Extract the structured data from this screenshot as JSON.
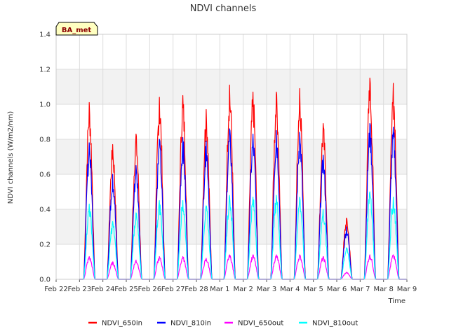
{
  "chart_data": {
    "type": "line",
    "title": "NDVI channels",
    "xlabel": "Time",
    "ylabel": "NDVI channels (W/m2/nm)",
    "badge": "BA_met",
    "x_ticks": [
      "Feb 22",
      "Feb 23",
      "Feb 24",
      "Feb 25",
      "Feb 26",
      "Feb 27",
      "Feb 28",
      "Mar 1",
      "Mar 2",
      "Mar 3",
      "Mar 4",
      "Mar 5",
      "Mar 6",
      "Mar 7",
      "Mar 8",
      "Mar 9"
    ],
    "x_range_days": [
      0,
      15
    ],
    "y_ticks": [
      "0.0",
      "0.2",
      "0.4",
      "0.6",
      "0.8",
      "1.0",
      "1.2",
      "1.4"
    ],
    "ylim": [
      0,
      1.4
    ],
    "grid": true,
    "legend_position": "bottom",
    "day_peak_time": 0.42,
    "series": [
      {
        "name": "NDVI_650in",
        "color": "#ff0000",
        "daily_peaks": [
          1.01,
          0.77,
          0.83,
          1.04,
          1.05,
          0.97,
          1.11,
          1.07,
          1.07,
          1.09,
          0.89,
          0.35,
          1.15,
          1.12
        ]
      },
      {
        "name": "NDVI_810in",
        "color": "#0000ff",
        "daily_peaks": [
          0.78,
          0.6,
          0.65,
          0.8,
          0.81,
          0.79,
          0.86,
          0.83,
          0.85,
          0.84,
          0.71,
          0.3,
          0.89,
          0.87
        ]
      },
      {
        "name": "NDVI_650out",
        "color": "#ff00ff",
        "daily_peaks": [
          0.13,
          0.1,
          0.11,
          0.13,
          0.13,
          0.12,
          0.14,
          0.14,
          0.14,
          0.14,
          0.13,
          0.04,
          0.14,
          0.14
        ]
      },
      {
        "name": "NDVI_810out",
        "color": "#00ffff",
        "daily_peaks": [
          0.43,
          0.33,
          0.38,
          0.45,
          0.45,
          0.42,
          0.48,
          0.47,
          0.48,
          0.47,
          0.4,
          0.18,
          0.5,
          0.47
        ]
      }
    ]
  }
}
